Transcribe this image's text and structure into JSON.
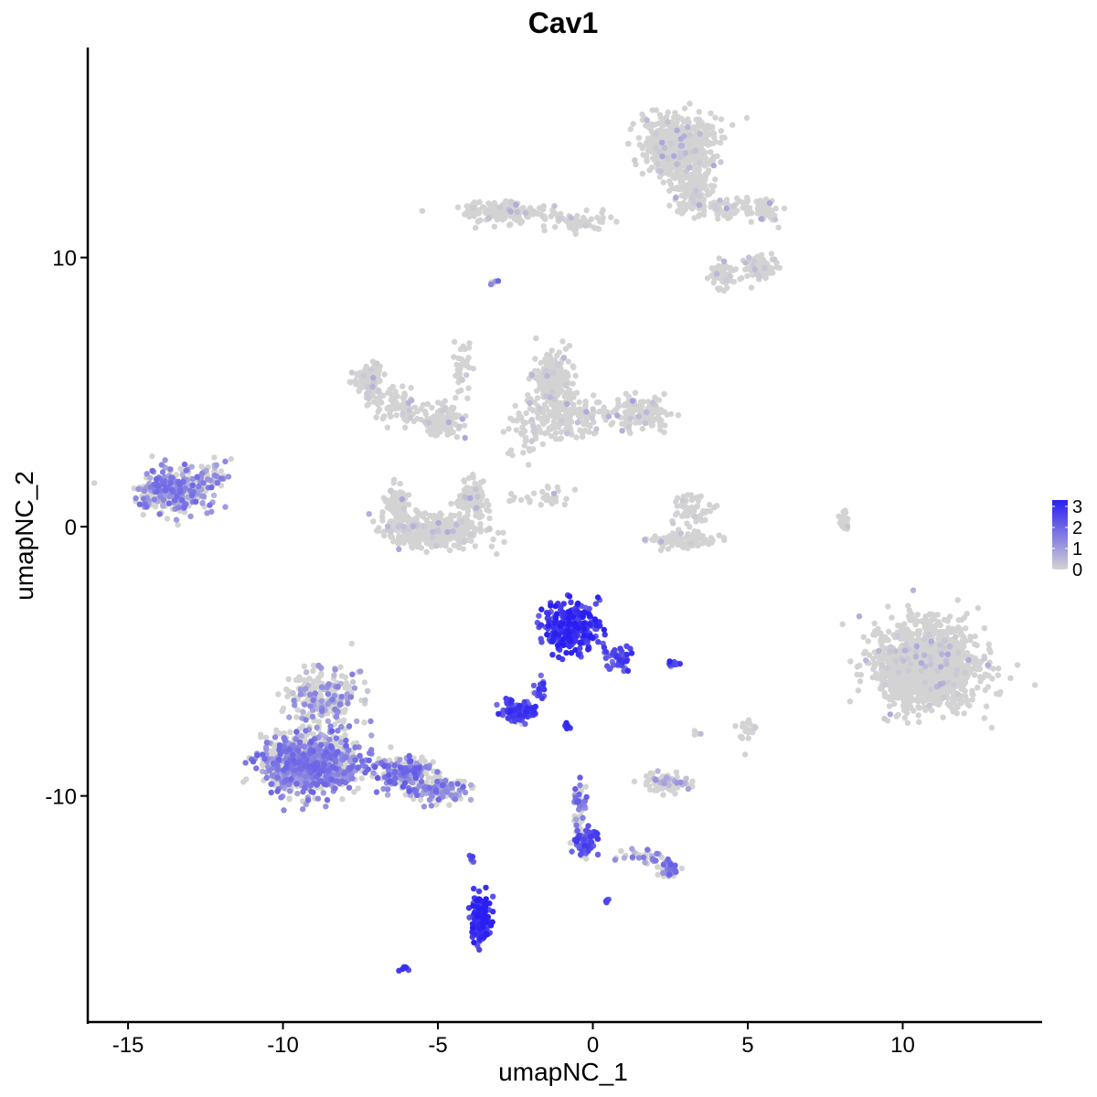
{
  "chart_data": {
    "type": "scatter",
    "title": "Cav1",
    "xlabel": "umapNC_1",
    "ylabel": "umapNC_2",
    "xlim": [
      -16.3,
      14.5
    ],
    "ylim": [
      -18.4,
      17.8
    ],
    "x_ticks": [
      -15,
      -10,
      -5,
      0,
      5,
      10
    ],
    "y_ticks": [
      -10,
      0,
      10
    ],
    "grid": false,
    "colors": {
      "low": "#d3d3d3",
      "high": "#2a1ff2"
    },
    "color_scale": {
      "name": "",
      "min": 0,
      "max": 3.3,
      "breaks": [
        0,
        1,
        2,
        3
      ]
    },
    "legend_position": "right",
    "clusters": [
      {
        "cx": 2.8,
        "cy": 14.1,
        "sx": 0.95,
        "sy": 0.9,
        "n": 650,
        "expr": 0.03
      },
      {
        "cx": 3.2,
        "cy": 12.4,
        "sx": 0.5,
        "sy": 0.6,
        "n": 120,
        "expr": 0.03
      },
      {
        "cx": -2.8,
        "cy": 11.7,
        "sx": 1.2,
        "sy": 0.35,
        "n": 160,
        "expr": 0.02
      },
      {
        "cx": -0.5,
        "cy": 11.3,
        "sx": 1.2,
        "sy": 0.3,
        "n": 50,
        "expr": 0.02
      },
      {
        "cx": 4.4,
        "cy": 11.9,
        "sx": 1.0,
        "sy": 0.3,
        "n": 70,
        "expr": 0.03
      },
      {
        "cx": 5.6,
        "cy": 11.7,
        "sx": 0.35,
        "sy": 0.4,
        "n": 40,
        "expr": 0.05
      },
      {
        "cx": 5.4,
        "cy": 9.6,
        "sx": 0.4,
        "sy": 0.4,
        "n": 90,
        "expr": 0.05
      },
      {
        "cx": 4.2,
        "cy": 9.3,
        "sx": 0.35,
        "sy": 0.4,
        "n": 60,
        "expr": 0.03
      },
      {
        "cx": -7.2,
        "cy": 5.5,
        "sx": 0.4,
        "sy": 0.5,
        "n": 120,
        "expr": 0.03
      },
      {
        "cx": -6.2,
        "cy": 4.6,
        "sx": 0.8,
        "sy": 0.6,
        "n": 90,
        "expr": 0.03
      },
      {
        "cx": -4.8,
        "cy": 3.9,
        "sx": 0.6,
        "sy": 0.5,
        "n": 110,
        "expr": 0.03
      },
      {
        "cx": -4.2,
        "cy": 6.1,
        "sx": 0.25,
        "sy": 1.0,
        "n": 35,
        "expr": 0.02
      },
      {
        "cx": -1.3,
        "cy": 5.5,
        "sx": 0.45,
        "sy": 0.7,
        "n": 200,
        "expr": 0.03
      },
      {
        "cx": -0.8,
        "cy": 4.1,
        "sx": 1.1,
        "sy": 0.7,
        "n": 200,
        "expr": 0.03
      },
      {
        "cx": 1.6,
        "cy": 4.2,
        "sx": 0.8,
        "sy": 0.5,
        "n": 130,
        "expr": 0.06
      },
      {
        "cx": -2.1,
        "cy": 3.5,
        "sx": 0.6,
        "sy": 0.7,
        "n": 40,
        "expr": 0.02
      },
      {
        "cx": -5.1,
        "cy": -0.2,
        "sx": 1.3,
        "sy": 0.45,
        "n": 420,
        "expr": 0.02
      },
      {
        "cx": -6.3,
        "cy": 0.8,
        "sx": 0.3,
        "sy": 0.6,
        "n": 80,
        "expr": 0.02
      },
      {
        "cx": -3.9,
        "cy": 1.0,
        "sx": 0.4,
        "sy": 0.6,
        "n": 100,
        "expr": 0.02
      },
      {
        "cx": -1.6,
        "cy": 1.1,
        "sx": 1.0,
        "sy": 0.35,
        "n": 30,
        "expr": 0.02
      },
      {
        "cx": 2.9,
        "cy": -0.5,
        "sx": 0.9,
        "sy": 0.25,
        "n": 90,
        "expr": 0.04
      },
      {
        "cx": 3.2,
        "cy": 0.6,
        "sx": 0.5,
        "sy": 0.5,
        "n": 60,
        "expr": 0.03
      },
      {
        "cx": 8.1,
        "cy": 0.2,
        "sx": 0.12,
        "sy": 0.5,
        "n": 25,
        "expr": 0.02
      },
      {
        "cx": -13.5,
        "cy": 1.3,
        "sx": 0.9,
        "sy": 0.7,
        "n": 330,
        "expr": 0.38
      },
      {
        "cx": -12.2,
        "cy": 1.9,
        "sx": 0.35,
        "sy": 0.5,
        "n": 40,
        "expr": 0.3
      },
      {
        "cx": 10.8,
        "cy": -5.2,
        "sx": 1.35,
        "sy": 1.25,
        "n": 1500,
        "expr": 0.02
      },
      {
        "cx": -0.7,
        "cy": -3.7,
        "sx": 0.75,
        "sy": 0.75,
        "n": 280,
        "expr": 0.82
      },
      {
        "cx": 0.8,
        "cy": -4.9,
        "sx": 0.35,
        "sy": 0.35,
        "n": 50,
        "expr": 0.7
      },
      {
        "cx": -2.4,
        "cy": -6.9,
        "sx": 0.45,
        "sy": 0.3,
        "n": 110,
        "expr": 0.72
      },
      {
        "cx": -1.7,
        "cy": -6.0,
        "sx": 0.2,
        "sy": 0.4,
        "n": 20,
        "expr": 0.7
      },
      {
        "cx": -9.1,
        "cy": -8.8,
        "sx": 1.3,
        "sy": 0.85,
        "n": 1000,
        "expr": 0.4
      },
      {
        "cx": -8.7,
        "cy": -6.4,
        "sx": 0.8,
        "sy": 0.8,
        "n": 260,
        "expr": 0.26
      },
      {
        "cx": -6.2,
        "cy": -9.1,
        "sx": 0.8,
        "sy": 0.5,
        "n": 180,
        "expr": 0.45
      },
      {
        "cx": -4.9,
        "cy": -9.8,
        "sx": 0.7,
        "sy": 0.4,
        "n": 130,
        "expr": 0.38
      },
      {
        "cx": 2.4,
        "cy": -9.5,
        "sx": 0.6,
        "sy": 0.3,
        "n": 90,
        "expr": 0.15
      },
      {
        "cx": 5.0,
        "cy": -7.6,
        "sx": 0.25,
        "sy": 0.3,
        "n": 25,
        "expr": 0.03
      },
      {
        "cx": 2.7,
        "cy": -5.1,
        "sx": 0.2,
        "sy": 0.1,
        "n": 12,
        "expr": 0.75
      },
      {
        "cx": -0.4,
        "cy": -10.5,
        "sx": 0.15,
        "sy": 0.8,
        "n": 50,
        "expr": 0.45
      },
      {
        "cx": -0.3,
        "cy": -11.7,
        "sx": 0.35,
        "sy": 0.45,
        "n": 70,
        "expr": 0.65
      },
      {
        "cx": 1.5,
        "cy": -12.3,
        "sx": 0.7,
        "sy": 0.2,
        "n": 30,
        "expr": 0.3
      },
      {
        "cx": 2.4,
        "cy": -12.7,
        "sx": 0.25,
        "sy": 0.25,
        "n": 40,
        "expr": 0.45
      },
      {
        "cx": -3.6,
        "cy": -14.6,
        "sx": 0.25,
        "sy": 0.7,
        "n": 140,
        "expr": 0.85
      },
      {
        "cx": -3.9,
        "cy": -12.4,
        "sx": 0.1,
        "sy": 0.3,
        "n": 6,
        "expr": 0.75
      },
      {
        "cx": -6.1,
        "cy": -16.4,
        "sx": 0.15,
        "sy": 0.1,
        "n": 8,
        "expr": 0.75
      },
      {
        "cx": 0.5,
        "cy": -13.9,
        "sx": 0.1,
        "sy": 0.1,
        "n": 6,
        "expr": 0.65
      },
      {
        "cx": -0.8,
        "cy": -7.3,
        "sx": 0.1,
        "sy": 0.2,
        "n": 6,
        "expr": 0.75
      },
      {
        "cx": 3.4,
        "cy": -7.7,
        "sx": 0.15,
        "sy": 0.15,
        "n": 5,
        "expr": 0.2
      },
      {
        "cx": -3.2,
        "cy": 9.1,
        "sx": 0.15,
        "sy": 0.15,
        "n": 5,
        "expr": 0.4
      }
    ]
  }
}
